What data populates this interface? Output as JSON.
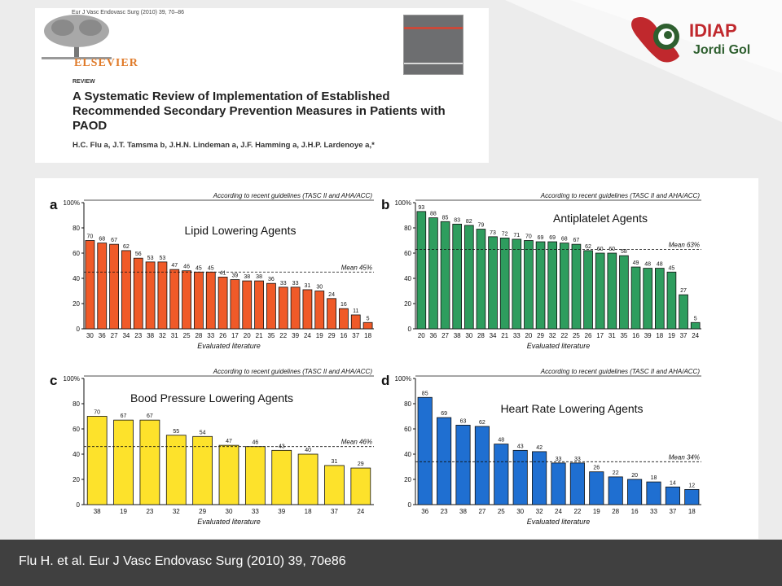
{
  "header": {
    "journal_ref": "Eur J Vasc Endovasc Surg (2010) 39, 70–86",
    "publisher": "ELSEVIER",
    "section": "REVIEW",
    "title": "A Systematic Review of Implementation of Established Recommended Secondary Prevention Measures in Patients with PAOD",
    "authors": "H.C. Flu a, J.T. Tamsma b, J.H.N. Lindeman a, J.F. Hamming a, J.H.P. Lardenoye a,*"
  },
  "logo": {
    "name": "IDIAP",
    "subname": "Jordi Gol",
    "colors": {
      "red": "#c0282d",
      "green": "#2e5f2f"
    }
  },
  "footer": {
    "citation": "Flu H. et al. Eur J Vasc Endovasc Surg (2010) 39, 70e86"
  },
  "colors": {
    "orange": "#f05a28",
    "green": "#2e9d5e",
    "yellow": "#fde22b",
    "blue": "#1f6fd1"
  },
  "chart_data": [
    {
      "type": "bar",
      "letter": "a",
      "title": "Lipid Lowering Agents",
      "guideline": "According to recent guidelines (TASC II and AHA/ACC)",
      "xlabel": "Evaluated literature",
      "ylabel": "",
      "ylim": [
        0,
        100
      ],
      "yticks": [
        "0",
        "20",
        "40",
        "60",
        "80",
        "100%"
      ],
      "categories": [
        "30",
        "36",
        "27",
        "34",
        "23",
        "38",
        "32",
        "31",
        "25",
        "28",
        "33",
        "26",
        "17",
        "20",
        "21",
        "35",
        "22",
        "39",
        "24",
        "19",
        "29",
        "16",
        "37",
        "18"
      ],
      "values": [
        70,
        68,
        67,
        62,
        56,
        53,
        53,
        47,
        46,
        45,
        45,
        41,
        39,
        38,
        38,
        36,
        33,
        33,
        31,
        30,
        24,
        16,
        11,
        5
      ],
      "mean": 45,
      "mean_label": "Mean 45%",
      "color": "#f05a28"
    },
    {
      "type": "bar",
      "letter": "b",
      "title": "Antiplatelet Agents",
      "guideline": "According to recent guidelines (TASC II and AHA/ACC)",
      "xlabel": "Evaluated literature",
      "ylabel": "",
      "ylim": [
        0,
        100
      ],
      "yticks": [
        "0",
        "20",
        "40",
        "60",
        "80",
        "100%"
      ],
      "categories": [
        "20",
        "36",
        "27",
        "38",
        "30",
        "28",
        "34",
        "21",
        "33",
        "20",
        "29",
        "32",
        "22",
        "25",
        "26",
        "17",
        "31",
        "35",
        "16",
        "39",
        "18",
        "19",
        "37",
        "24"
      ],
      "values": [
        93,
        88,
        85,
        83,
        82,
        79,
        73,
        72,
        71,
        70,
        69,
        69,
        68,
        67,
        62,
        60,
        60,
        58,
        49,
        48,
        48,
        45,
        27,
        5
      ],
      "mean": 63,
      "mean_label": "Mean 63%",
      "color": "#2e9d5e"
    },
    {
      "type": "bar",
      "letter": "c",
      "title": "Bood Pressure Lowering Agents",
      "guideline": "According to recent guidelines (TASC II and AHA/ACC)",
      "xlabel": "Evaluated literature",
      "ylabel": "",
      "ylim": [
        0,
        100
      ],
      "yticks": [
        "0",
        "20",
        "40",
        "60",
        "80",
        "100%"
      ],
      "categories": [
        "38",
        "19",
        "23",
        "32",
        "29",
        "30",
        "33",
        "39",
        "18",
        "37",
        "24"
      ],
      "values": [
        70,
        67,
        67,
        55,
        54,
        47,
        46,
        43,
        40,
        31,
        29
      ],
      "mean": 46,
      "mean_label": "Mean 46%",
      "color": "#fde22b"
    },
    {
      "type": "bar",
      "letter": "d",
      "title": "Heart Rate Lowering Agents",
      "guideline": "According to recent guidelines (TASC II and AHA/ACC)",
      "xlabel": "Evaluated literature",
      "ylabel": "",
      "ylim": [
        0,
        100
      ],
      "yticks": [
        "0",
        "20",
        "40",
        "60",
        "80",
        "100%"
      ],
      "categories": [
        "36",
        "23",
        "38",
        "27",
        "25",
        "30",
        "32",
        "24",
        "22",
        "19",
        "28",
        "16",
        "33",
        "37",
        "18"
      ],
      "values": [
        85,
        69,
        63,
        62,
        48,
        43,
        42,
        33,
        33,
        26,
        22,
        20,
        18,
        14,
        12
      ],
      "mean": 34,
      "mean_label": "Mean 34%",
      "color": "#1f6fd1"
    }
  ]
}
